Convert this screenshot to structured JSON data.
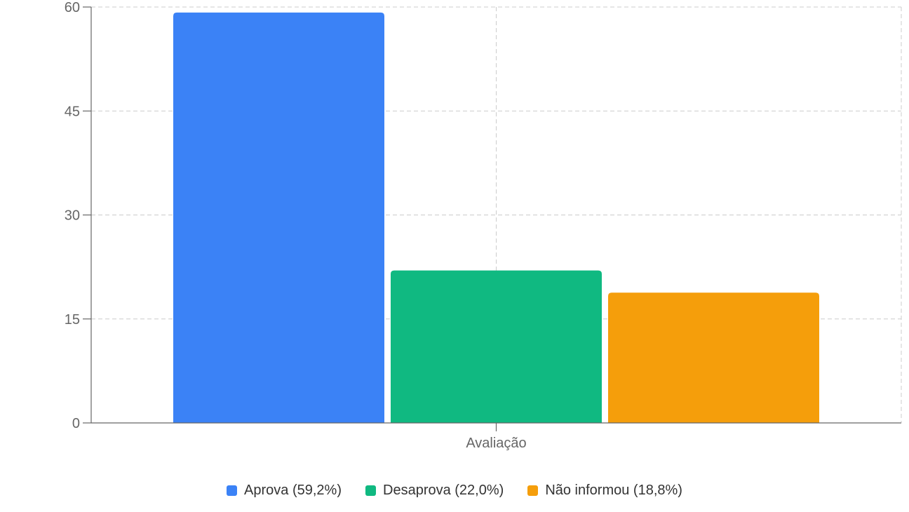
{
  "chart_data": {
    "type": "bar",
    "categories": [
      "Avaliação"
    ],
    "series": [
      {
        "name": "Aprova (59,2%)",
        "values": [
          59.2
        ],
        "color": "#3b82f6"
      },
      {
        "name": "Desaprova (22,0%)",
        "values": [
          22.0
        ],
        "color": "#10b981"
      },
      {
        "name": "Não informou (18,8%)",
        "values": [
          18.8
        ],
        "color": "#f59e0b"
      }
    ],
    "title": "",
    "xlabel": "",
    "ylabel": "",
    "ylim": [
      0,
      60
    ],
    "yticks": [
      "0",
      "15",
      "30",
      "45",
      "60"
    ],
    "grid": true,
    "legend_position": "bottom"
  }
}
